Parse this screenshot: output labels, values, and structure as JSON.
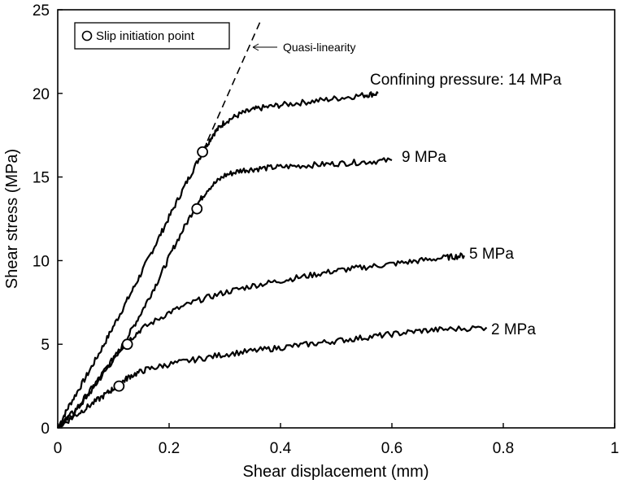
{
  "chart_data": {
    "type": "line",
    "title": "",
    "xlabel": "Shear displacement (mm)",
    "ylabel": "Shear stress (MPa)",
    "xlim": [
      0,
      1
    ],
    "ylim": [
      0,
      25
    ],
    "xticks": [
      0,
      0.2,
      0.4,
      0.6,
      0.8,
      1
    ],
    "xtick_labels": [
      "0",
      "0.2",
      "0.4",
      "0.6",
      "0.8",
      "1"
    ],
    "yticks": [
      0,
      5,
      10,
      15,
      20,
      25
    ],
    "ytick_labels": [
      "0",
      "5",
      "10",
      "15",
      "20",
      "25"
    ],
    "grid": false,
    "legend": {
      "position": "top-left",
      "label": "Slip initiation point"
    },
    "series": [
      {
        "name": "14 MPa",
        "label": "Confining pressure: 14 MPa",
        "x": [
          0,
          0.02,
          0.05,
          0.08,
          0.11,
          0.14,
          0.17,
          0.2,
          0.23,
          0.26,
          0.28,
          0.3,
          0.33,
          0.36,
          0.4,
          0.45,
          0.5,
          0.55,
          0.575
        ],
        "y": [
          0,
          1.3,
          3.0,
          4.8,
          6.7,
          8.6,
          10.6,
          12.6,
          14.6,
          16.5,
          17.6,
          18.3,
          18.8,
          19.1,
          19.3,
          19.5,
          19.7,
          19.9,
          20.0
        ],
        "slip_point": {
          "x": 0.26,
          "y": 16.5
        }
      },
      {
        "name": "9 MPa",
        "label": "9 MPa",
        "x": [
          0,
          0.03,
          0.06,
          0.09,
          0.12,
          0.15,
          0.18,
          0.21,
          0.245,
          0.27,
          0.3,
          0.33,
          0.36,
          0.4,
          0.45,
          0.5,
          0.55,
          0.6
        ],
        "y": [
          0,
          0.9,
          2.2,
          3.6,
          5.1,
          6.9,
          8.8,
          10.9,
          13.1,
          14.3,
          15.1,
          15.4,
          15.5,
          15.6,
          15.7,
          15.8,
          15.9,
          16.0
        ],
        "slip_point": {
          "x": 0.25,
          "y": 13.1
        }
      },
      {
        "name": "5 MPa",
        "label": "5 MPa",
        "x": [
          0,
          0.03,
          0.06,
          0.09,
          0.12,
          0.15,
          0.2,
          0.25,
          0.3,
          0.35,
          0.4,
          0.45,
          0.5,
          0.55,
          0.6,
          0.65,
          0.7,
          0.73
        ],
        "y": [
          0,
          1.0,
          2.3,
          3.7,
          5.0,
          5.9,
          6.9,
          7.6,
          8.1,
          8.5,
          8.8,
          9.1,
          9.4,
          9.6,
          9.8,
          10.0,
          10.2,
          10.3
        ],
        "slip_point": {
          "x": 0.125,
          "y": 5.0
        }
      },
      {
        "name": "2 MPa",
        "label": "2 MPa",
        "x": [
          0,
          0.03,
          0.06,
          0.09,
          0.11,
          0.13,
          0.16,
          0.2,
          0.25,
          0.3,
          0.35,
          0.4,
          0.45,
          0.5,
          0.55,
          0.6,
          0.65,
          0.7,
          0.77
        ],
        "y": [
          0,
          0.7,
          1.4,
          2.1,
          2.6,
          3.1,
          3.5,
          3.8,
          4.1,
          4.4,
          4.6,
          4.8,
          5.0,
          5.2,
          5.4,
          5.6,
          5.8,
          5.9,
          6.0
        ],
        "slip_point": {
          "x": 0.11,
          "y": 2.5
        }
      }
    ],
    "quasi_linearity_line": {
      "label": "Quasi-linearity",
      "x": [
        0.26,
        0.365
      ],
      "y": [
        16.5,
        24.4
      ]
    }
  }
}
